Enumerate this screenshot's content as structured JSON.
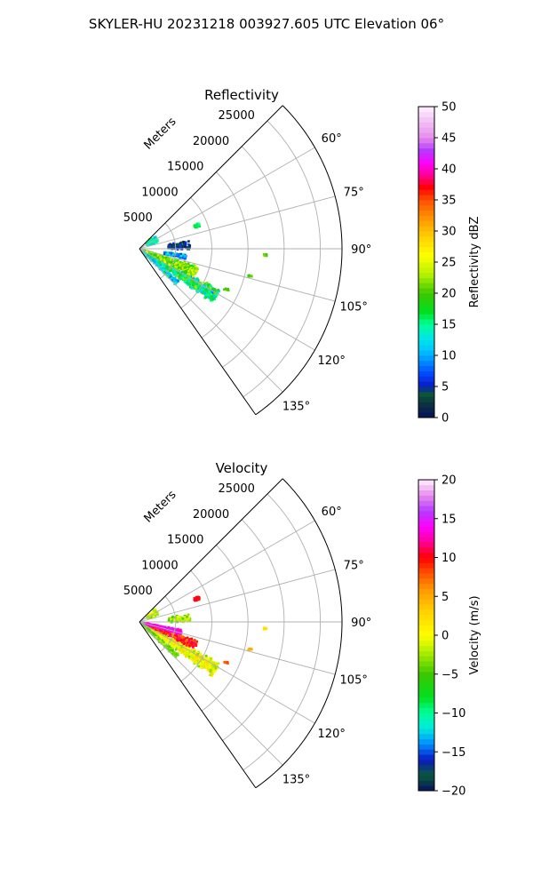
{
  "figure": {
    "suptitle": "SKYLER-HU  20231218  003927.605 UTC Elevation 06°"
  },
  "chart_data": [
    {
      "type": "polar-sector",
      "title": "Reflectivity",
      "range_label": "Meters",
      "theta_range_deg": [
        45,
        145
      ],
      "r_max": 28000,
      "range_ticks": [
        5000,
        10000,
        15000,
        20000,
        25000
      ],
      "range_tick_labels": [
        "5000",
        "10000",
        "15000",
        "20000",
        "25000"
      ],
      "angle_ticks": [
        60,
        75,
        90,
        105,
        120,
        135
      ],
      "angle_tick_labels": [
        "60°",
        "75°",
        "90°",
        "105°",
        "120°",
        "135°"
      ],
      "grid": true,
      "colorbar": {
        "label": "Reflectivity dBZ",
        "min": 0,
        "max": 50,
        "ticks": [
          0,
          5,
          10,
          15,
          20,
          25,
          30,
          35,
          40,
          45,
          50
        ],
        "tick_labels": [
          "0",
          "5",
          "10",
          "15",
          "20",
          "25",
          "30",
          "35",
          "40",
          "45",
          "50"
        ],
        "stops": [
          {
            "v": 0,
            "c": "#06115e"
          },
          {
            "v": 2,
            "c": "#0d2e40"
          },
          {
            "v": 4,
            "c": "#0a5a3a"
          },
          {
            "v": 5,
            "c": "#0a18c0"
          },
          {
            "v": 7,
            "c": "#0046ff"
          },
          {
            "v": 9,
            "c": "#008cff"
          },
          {
            "v": 11,
            "c": "#00c8ff"
          },
          {
            "v": 13,
            "c": "#00e8e0"
          },
          {
            "v": 15,
            "c": "#00ff9a"
          },
          {
            "v": 17,
            "c": "#00e020"
          },
          {
            "v": 20,
            "c": "#3cc800"
          },
          {
            "v": 23,
            "c": "#b4f000"
          },
          {
            "v": 26,
            "c": "#ffff00"
          },
          {
            "v": 29,
            "c": "#ffd200"
          },
          {
            "v": 32,
            "c": "#ff9600"
          },
          {
            "v": 35,
            "c": "#ff5000"
          },
          {
            "v": 37,
            "c": "#ff0000"
          },
          {
            "v": 39,
            "c": "#ff0096"
          },
          {
            "v": 41,
            "c": "#ff00ff"
          },
          {
            "v": 43,
            "c": "#b43cff"
          },
          {
            "v": 45,
            "c": "#e68ceb"
          },
          {
            "v": 48,
            "c": "#f5c8f5"
          },
          {
            "v": 50,
            "c": "#fff0ff"
          }
        ]
      },
      "echo_regions": [
        {
          "theta": 122,
          "r0": 600,
          "r1": 12500,
          "width": 6,
          "value": 16,
          "spread": 7,
          "density": 1100
        },
        {
          "theta": 112,
          "r0": 300,
          "r1": 8500,
          "width": 7,
          "value": 22,
          "spread": 6,
          "density": 700
        },
        {
          "theta": 132,
          "r0": 500,
          "r1": 7000,
          "width": 4,
          "value": 12,
          "spread": 5,
          "density": 250
        },
        {
          "theta": 100,
          "r0": 3500,
          "r1": 6500,
          "width": 4,
          "value": 9,
          "spread": 5,
          "density": 160
        },
        {
          "theta": 86,
          "r0": 4000,
          "r1": 7000,
          "width": 6,
          "value": 4,
          "spread": 4,
          "density": 130
        },
        {
          "theta": 60,
          "r0": 1200,
          "r1": 2800,
          "width": 14,
          "value": 14,
          "spread": 4,
          "density": 110
        },
        {
          "theta": 68,
          "r0": 8200,
          "r1": 8900,
          "width": 2,
          "value": 16,
          "spread": 2,
          "density": 60
        },
        {
          "theta": 93,
          "r0": 17200,
          "r1": 17600,
          "width": 1,
          "value": 21,
          "spread": 1,
          "density": 8
        },
        {
          "theta": 104,
          "r0": 15500,
          "r1": 16000,
          "width": 1,
          "value": 21,
          "spread": 1,
          "density": 8
        },
        {
          "theta": 115,
          "r0": 13000,
          "r1": 13600,
          "width": 1,
          "value": 20,
          "spread": 1,
          "density": 8
        }
      ]
    },
    {
      "type": "polar-sector",
      "title": "Velocity",
      "range_label": "Meters",
      "theta_range_deg": [
        45,
        145
      ],
      "r_max": 28000,
      "range_ticks": [
        5000,
        10000,
        15000,
        20000,
        25000
      ],
      "range_tick_labels": [
        "5000",
        "10000",
        "15000",
        "20000",
        "25000"
      ],
      "angle_ticks": [
        60,
        75,
        90,
        105,
        120,
        135
      ],
      "angle_tick_labels": [
        "60°",
        "75°",
        "90°",
        "105°",
        "120°",
        "135°"
      ],
      "grid": true,
      "colorbar": {
        "label": "Velocity (m/s)",
        "min": -20,
        "max": 20,
        "ticks": [
          -20,
          -15,
          -10,
          -5,
          0,
          5,
          10,
          15,
          20
        ],
        "tick_labels": [
          "−20",
          "−15",
          "−10",
          "−5",
          "0",
          "5",
          "10",
          "15",
          "20"
        ],
        "stops": [
          {
            "v": -20,
            "c": "#06115e"
          },
          {
            "v": -18,
            "c": "#0a5a3a"
          },
          {
            "v": -16,
            "c": "#0a18c0"
          },
          {
            "v": -14,
            "c": "#008cff"
          },
          {
            "v": -12,
            "c": "#00e8e0"
          },
          {
            "v": -10,
            "c": "#00ff9a"
          },
          {
            "v": -8,
            "c": "#00e020"
          },
          {
            "v": -5,
            "c": "#3cc800"
          },
          {
            "v": -2,
            "c": "#b4f000"
          },
          {
            "v": 0,
            "c": "#ffff00"
          },
          {
            "v": 3,
            "c": "#ffd200"
          },
          {
            "v": 6,
            "c": "#ff9600"
          },
          {
            "v": 8,
            "c": "#ff5000"
          },
          {
            "v": 10,
            "c": "#ff0000"
          },
          {
            "v": 12,
            "c": "#ff0096"
          },
          {
            "v": 14,
            "c": "#ff00ff"
          },
          {
            "v": 16,
            "c": "#b43cff"
          },
          {
            "v": 18,
            "c": "#e68ceb"
          },
          {
            "v": 20,
            "c": "#fff0ff"
          }
        ]
      },
      "echo_regions": [
        {
          "theta": 122,
          "r0": 600,
          "r1": 12500,
          "width": 6,
          "value": 0,
          "spread": 4,
          "density": 1100
        },
        {
          "theta": 112,
          "r0": 300,
          "r1": 8500,
          "width": 5,
          "value": 9,
          "spread": 4,
          "density": 650
        },
        {
          "theta": 104,
          "r0": 300,
          "r1": 6000,
          "width": 4,
          "value": 14,
          "spread": 2,
          "density": 350
        },
        {
          "theta": 132,
          "r0": 500,
          "r1": 7000,
          "width": 4,
          "value": -4,
          "spread": 3,
          "density": 250
        },
        {
          "theta": 86,
          "r0": 4000,
          "r1": 7000,
          "width": 6,
          "value": -3,
          "spread": 5,
          "density": 110
        },
        {
          "theta": 60,
          "r0": 1200,
          "r1": 2800,
          "width": 14,
          "value": -2,
          "spread": 3,
          "density": 110
        },
        {
          "theta": 68,
          "r0": 8200,
          "r1": 8900,
          "width": 2,
          "value": 10,
          "spread": 1,
          "density": 60
        },
        {
          "theta": 93,
          "r0": 17200,
          "r1": 17600,
          "width": 1,
          "value": 2,
          "spread": 1,
          "density": 8
        },
        {
          "theta": 104,
          "r0": 15500,
          "r1": 16000,
          "width": 1,
          "value": 5,
          "spread": 1,
          "density": 8
        },
        {
          "theta": 115,
          "r0": 13000,
          "r1": 13600,
          "width": 1,
          "value": 8,
          "spread": 1,
          "density": 8
        }
      ]
    }
  ]
}
